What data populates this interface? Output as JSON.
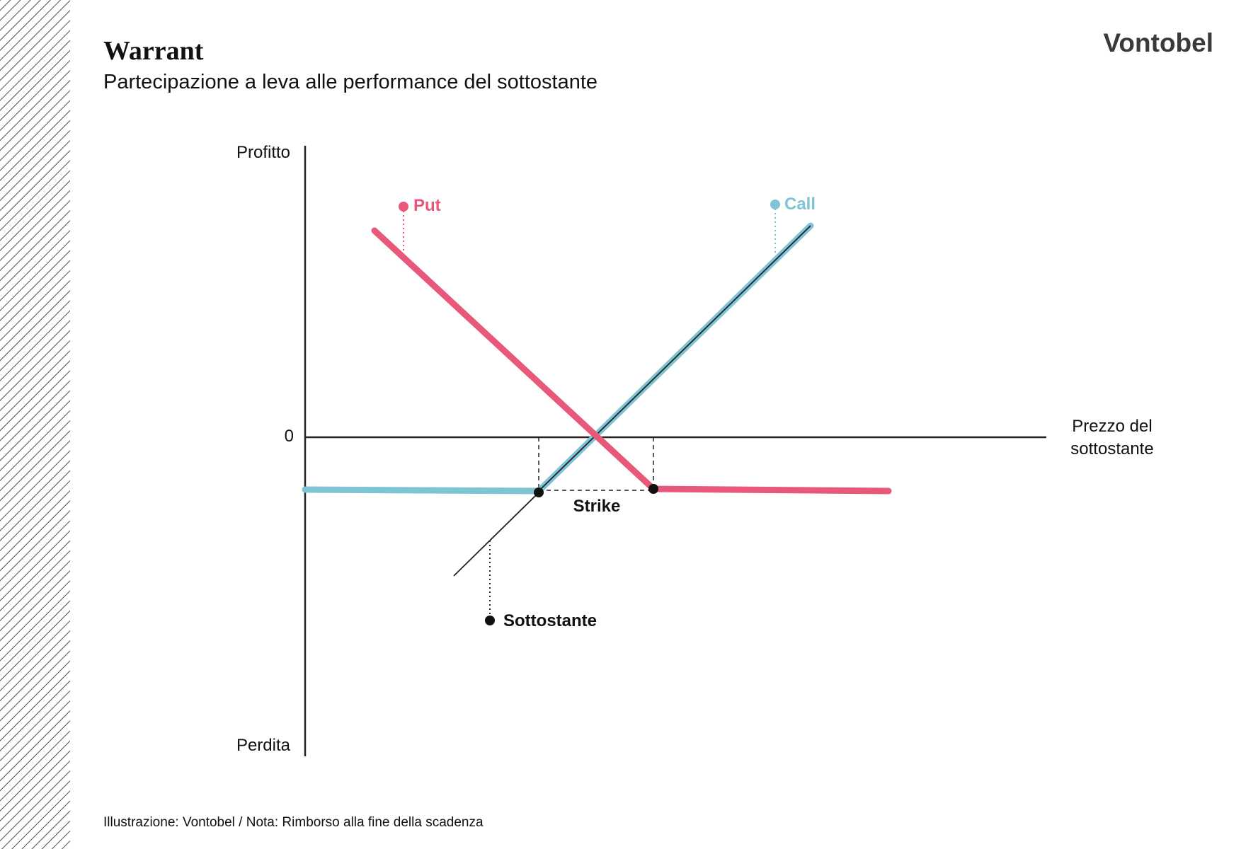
{
  "header": {
    "title": "Warrant",
    "subtitle": "Partecipazione a leva alle performance del sottostante",
    "logo": "Vontobel"
  },
  "axes": {
    "y_top": "Profitto",
    "y_bottom": "Perdita",
    "zero": "0",
    "x_label": [
      "Prezzo del",
      "sottostante"
    ]
  },
  "labels": {
    "put": "Put",
    "call": "Call",
    "strike": "Strike",
    "underlying": "Sottostante"
  },
  "footer": "Illustrazione: Vontobel / Nota: Rimborso alla fine della scadenza"
}
